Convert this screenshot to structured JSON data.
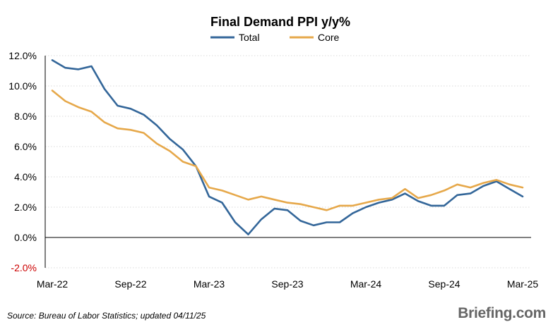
{
  "chart_data": {
    "type": "line",
    "title": "Final Demand PPI y/y%",
    "xlabel": "",
    "ylabel": "",
    "ylim": [
      -2,
      12
    ],
    "ytick_labels": [
      "-2.0%",
      "0.0%",
      "2.0%",
      "4.0%",
      "6.0%",
      "8.0%",
      "10.0%",
      "12.0%"
    ],
    "yticks": [
      -2,
      0,
      2,
      4,
      6,
      8,
      10,
      12
    ],
    "xtick_labels": [
      "Mar-22",
      "Sep-22",
      "Mar-23",
      "Sep-23",
      "Mar-24",
      "Sep-24",
      "Mar-25"
    ],
    "x": [
      "Mar-22",
      "Apr-22",
      "May-22",
      "Jun-22",
      "Jul-22",
      "Aug-22",
      "Sep-22",
      "Oct-22",
      "Nov-22",
      "Dec-22",
      "Jan-23",
      "Feb-23",
      "Mar-23",
      "Apr-23",
      "May-23",
      "Jun-23",
      "Jul-23",
      "Aug-23",
      "Sep-23",
      "Oct-23",
      "Nov-23",
      "Dec-23",
      "Jan-24",
      "Feb-24",
      "Mar-24",
      "Apr-24",
      "May-24",
      "Jun-24",
      "Jul-24",
      "Aug-24",
      "Sep-24",
      "Oct-24",
      "Nov-24",
      "Dec-24",
      "Jan-25",
      "Feb-25",
      "Mar-25"
    ],
    "legend_position": "top-center",
    "grid": true,
    "series": [
      {
        "name": "Total",
        "color": "#336699",
        "values": [
          11.7,
          11.2,
          11.1,
          11.3,
          9.8,
          8.7,
          8.5,
          8.1,
          7.4,
          6.5,
          5.8,
          4.7,
          2.7,
          2.3,
          1.0,
          0.2,
          1.2,
          1.9,
          1.8,
          1.1,
          0.8,
          1.0,
          1.0,
          1.6,
          2.0,
          2.3,
          2.5,
          2.9,
          2.4,
          2.1,
          2.1,
          2.8,
          2.9,
          3.4,
          3.7,
          3.2,
          2.7
        ]
      },
      {
        "name": "Core",
        "color": "#E6A84A",
        "values": [
          9.7,
          9.0,
          8.6,
          8.3,
          7.6,
          7.2,
          7.1,
          6.9,
          6.2,
          5.7,
          5.0,
          4.7,
          3.3,
          3.1,
          2.8,
          2.5,
          2.7,
          2.5,
          2.3,
          2.2,
          2.0,
          1.8,
          2.1,
          2.1,
          2.3,
          2.5,
          2.6,
          3.2,
          2.6,
          2.8,
          3.1,
          3.5,
          3.3,
          3.6,
          3.8,
          3.5,
          3.3
        ]
      }
    ]
  },
  "footer": {
    "source": "Source: Bureau of Labor Statistics; updated 04/11/25",
    "brand": "Briefing.com"
  }
}
